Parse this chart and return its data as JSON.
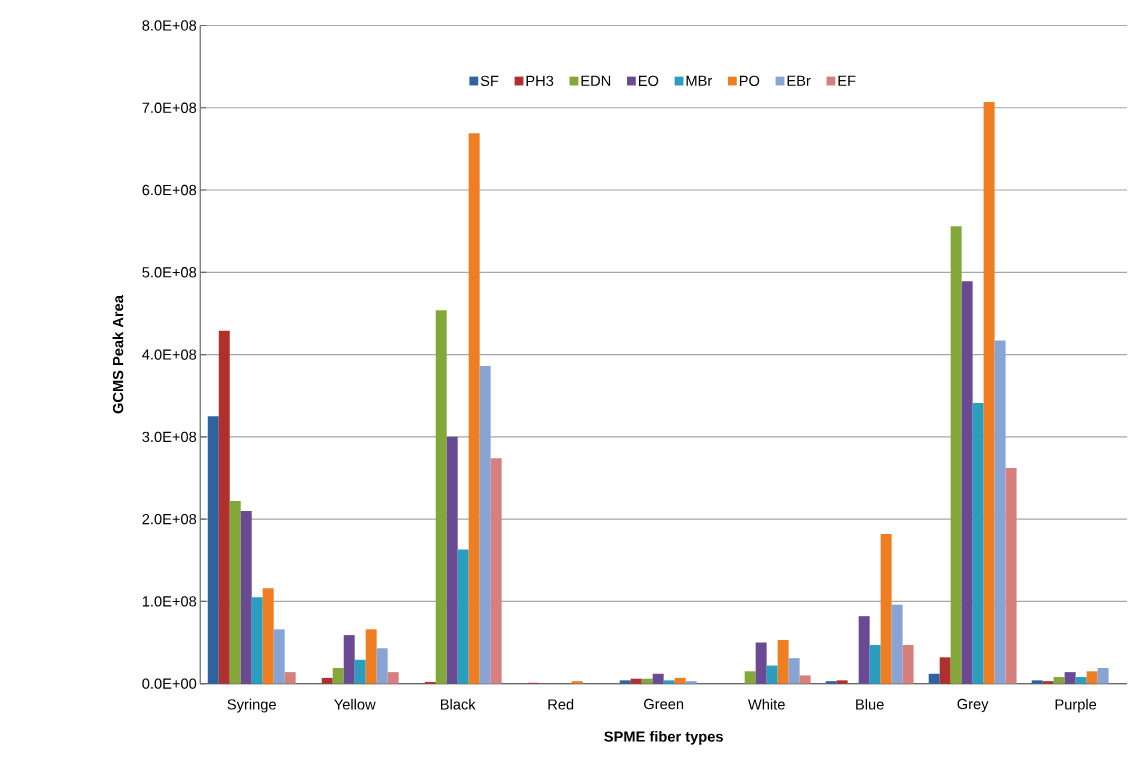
{
  "chart_data": {
    "type": "bar",
    "xlabel": "SPME fiber types",
    "ylabel": "GCMS Peak Area",
    "categories": [
      "Syringe",
      "Yellow",
      "Black",
      "Red",
      "Green",
      "White",
      "Blue",
      "Grey",
      "Purple"
    ],
    "series": [
      {
        "name": "SF",
        "color": "#2e62a0",
        "values": [
          325000000,
          0,
          0,
          null,
          4000000,
          0,
          3000000,
          12000000,
          4000000
        ]
      },
      {
        "name": "PH3",
        "color": "#b0302d",
        "values": [
          429000000,
          7000000,
          2000000,
          1000000,
          6000000,
          0,
          4000000,
          32000000,
          3000000
        ]
      },
      {
        "name": "EDN",
        "color": "#82a83a",
        "values": [
          222000000,
          19000000,
          454000000,
          0,
          6000000,
          15000000,
          0,
          556000000,
          8000000
        ]
      },
      {
        "name": "EO",
        "color": "#6a4a92",
        "values": [
          210000000,
          59000000,
          300000000,
          0,
          12000000,
          50000000,
          82000000,
          489000000,
          14000000
        ]
      },
      {
        "name": "MBr",
        "color": "#2a9ebf",
        "values": [
          105000000,
          29000000,
          163000000,
          0,
          4000000,
          22000000,
          47000000,
          341000000,
          8000000
        ]
      },
      {
        "name": "PO",
        "color": "#ef7d22",
        "values": [
          116000000,
          66000000,
          669000000,
          3000000,
          7000000,
          53000000,
          182000000,
          707000000,
          15000000
        ]
      },
      {
        "name": "EBr",
        "color": "#87a4d4",
        "values": [
          66000000,
          43000000,
          386000000,
          null,
          3000000,
          31000000,
          96000000,
          417000000,
          19000000
        ]
      },
      {
        "name": "EF",
        "color": "#d67f7f",
        "values": [
          14000000,
          14000000,
          274000000,
          0,
          null,
          10000000,
          47000000,
          262000000,
          0
        ]
      }
    ],
    "ylim": [
      0,
      800000000
    ],
    "yticks": [
      {
        "value": 0,
        "label": "0.0E+00"
      },
      {
        "value": 100000000,
        "label": "1.0E+08"
      },
      {
        "value": 200000000,
        "label": "2.0E+08"
      },
      {
        "value": 300000000,
        "label": "3.0E+08"
      },
      {
        "value": 400000000,
        "label": "4.0E+08"
      },
      {
        "value": 500000000,
        "label": "5.0E+08"
      },
      {
        "value": 600000000,
        "label": "6.0E+08"
      },
      {
        "value": 700000000,
        "label": "7.0E+08"
      },
      {
        "value": 800000000,
        "label": "8.0E+08"
      }
    ],
    "grid": "y",
    "legend": "top"
  }
}
